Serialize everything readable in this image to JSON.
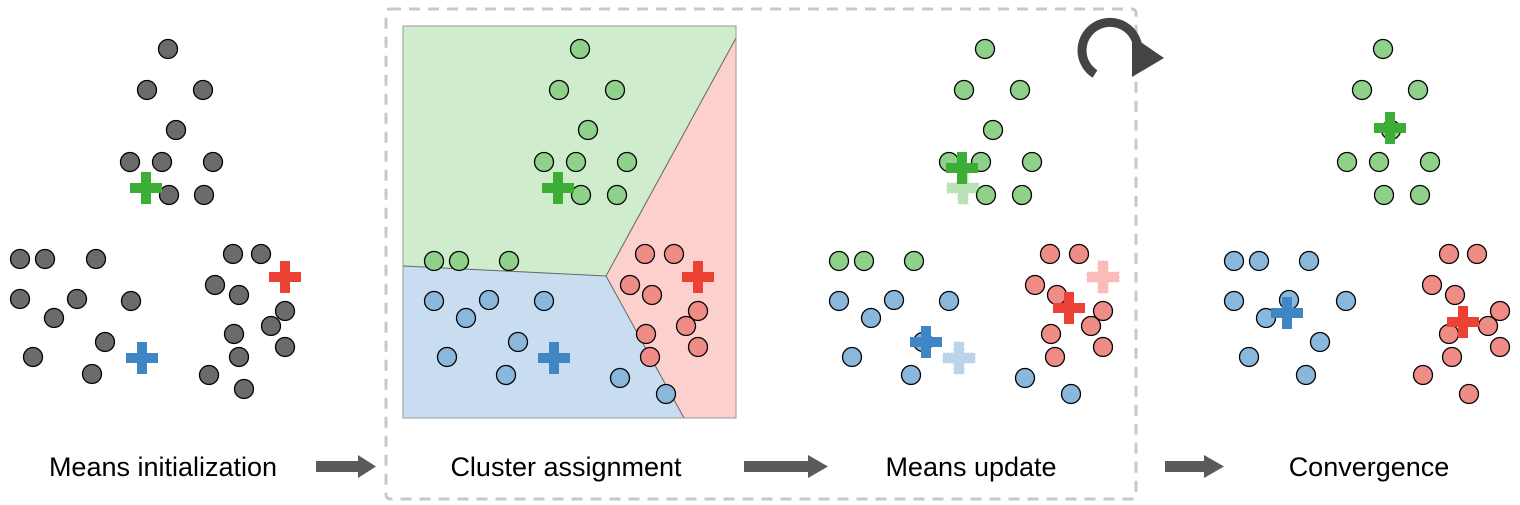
{
  "stages": [
    {
      "id": "init",
      "label": "Means initialization"
    },
    {
      "id": "assign",
      "label": "Cluster assignment"
    },
    {
      "id": "update",
      "label": "Means update"
    },
    {
      "id": "conv",
      "label": "Convergence"
    }
  ],
  "colors": {
    "gray_point": "#6b6b6b",
    "green_point": "#8fd18a",
    "blue_point": "#8ab7dc",
    "red_point": "#f08c86",
    "green_mean": "#3cae36",
    "blue_mean": "#3f86c4",
    "red_mean": "#ee4136",
    "green_region": "#cfeccc",
    "blue_region": "#c9ddf0",
    "red_region": "#fcd0cc",
    "arrow": "#5a5a5a",
    "dashed_box": "#c8c8c8"
  },
  "icons": {
    "stage_arrow": "right-arrow-icon",
    "iterate": "circular-arrow-icon"
  }
}
